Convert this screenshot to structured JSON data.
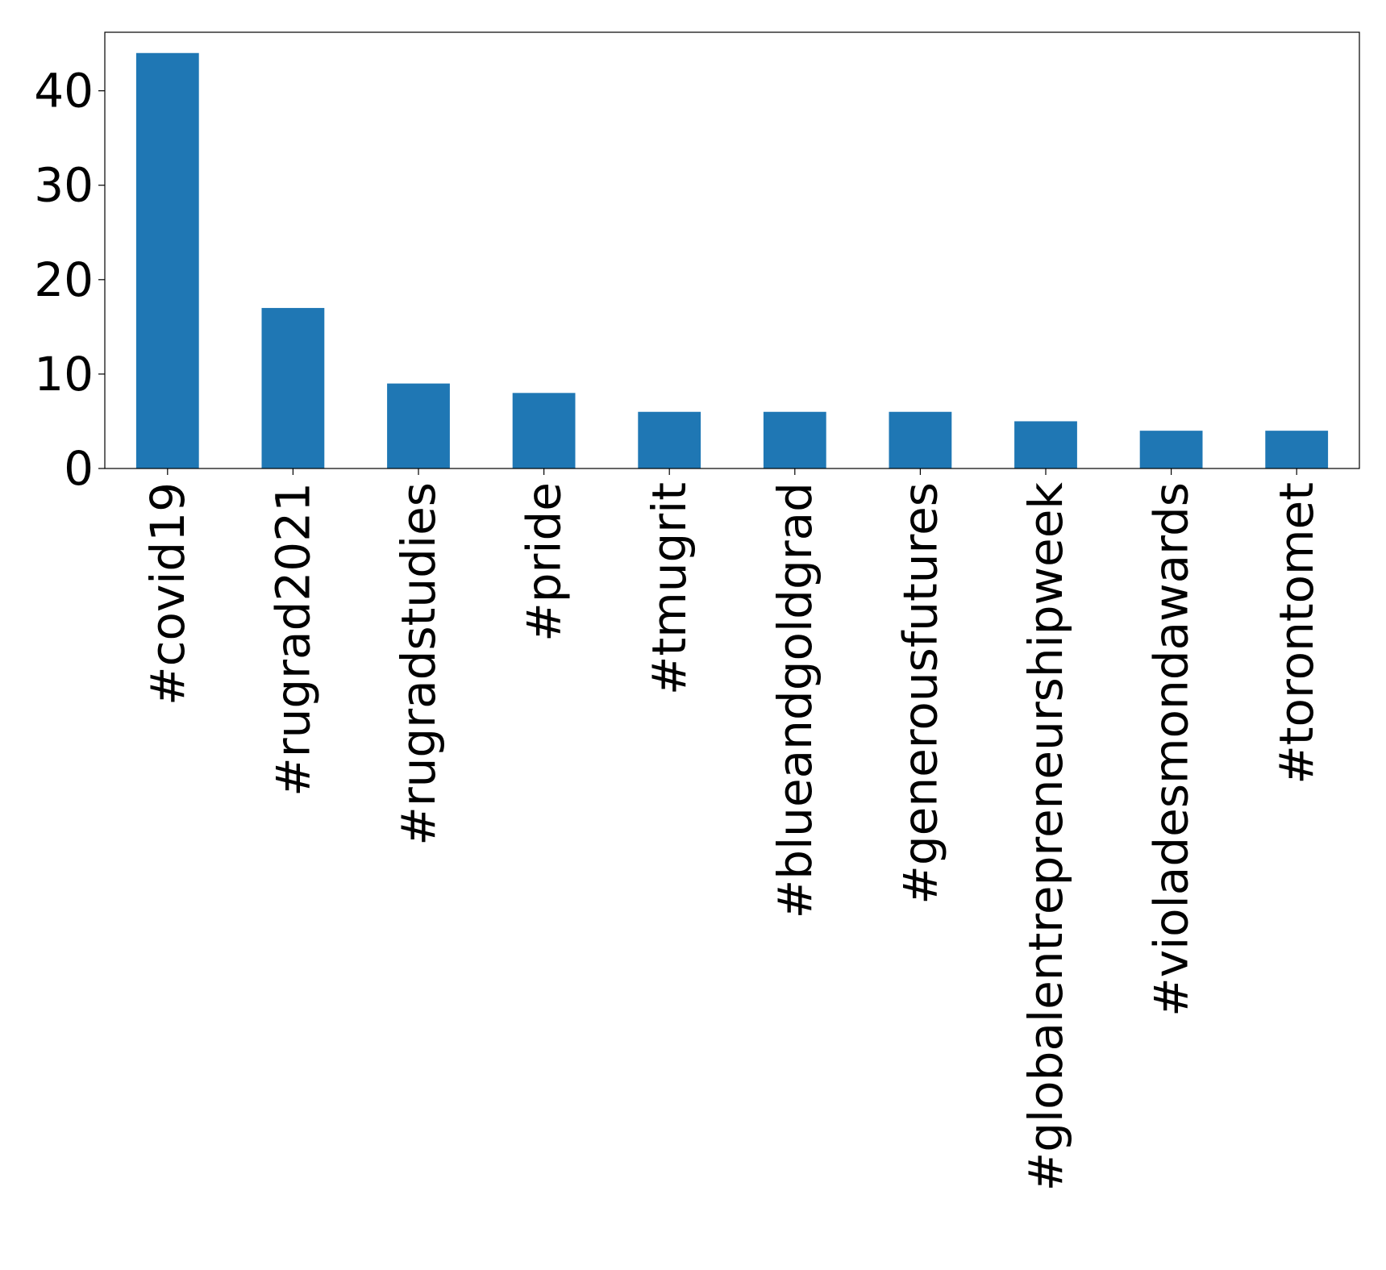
{
  "chart_data": {
    "type": "bar",
    "categories": [
      "#covid19",
      "#rugrad2021",
      "#rugradstudies",
      "#pride",
      "#tmugrit",
      "#blueandgoldgrad",
      "#generousfutures",
      "#globalentrepreneurshipweek",
      "#violadesmondawards",
      "#torontomet"
    ],
    "values": [
      44,
      17,
      9,
      8,
      6,
      6,
      6,
      5,
      4,
      4
    ],
    "ylim": [
      0,
      46.2
    ],
    "yticks": [
      0,
      10,
      20,
      30,
      40
    ],
    "ytick_labels": [
      "0",
      "10",
      "20",
      "30",
      "40"
    ],
    "title": "",
    "xlabel": "",
    "ylabel": "",
    "grid": false,
    "legend": "none",
    "colors": {
      "bar": "#1f77b4",
      "axes": "#000000",
      "background": "#ffffff"
    }
  }
}
